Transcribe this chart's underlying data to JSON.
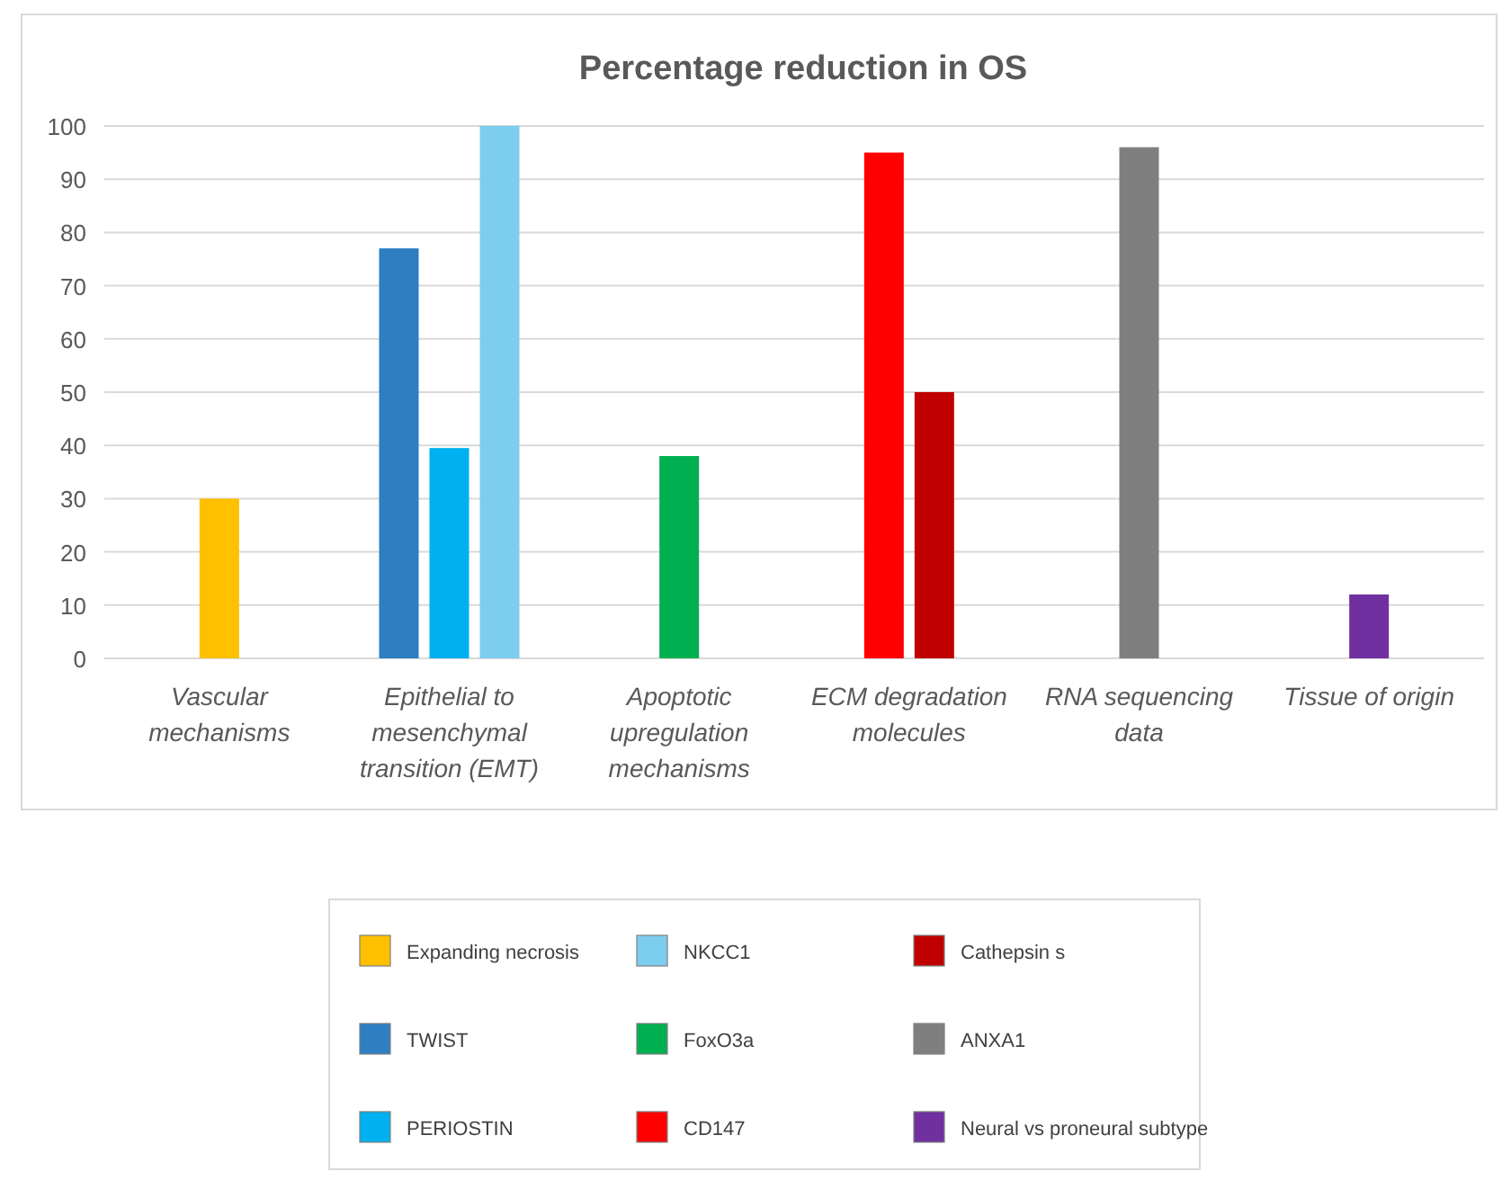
{
  "chart_data": {
    "type": "bar",
    "title": "Percentage reduction in OS",
    "categories": [
      "Vascular mechanisms",
      "Epithelial to mesenchymal transition (EMT)",
      "Apoptotic upregulation mechanisms",
      "ECM degradation molecules",
      "RNA sequencing data",
      "Tissue of origin"
    ],
    "series": [
      {
        "name": "Expanding necrosis",
        "color": "#ffc000",
        "values": [
          30,
          null,
          null,
          null,
          null,
          null
        ]
      },
      {
        "name": "TWIST",
        "color": "#2e7ec4",
        "values": [
          null,
          77,
          null,
          null,
          null,
          null
        ]
      },
      {
        "name": "PERIOSTIN",
        "color": "#00b0f0",
        "values": [
          null,
          39.5,
          null,
          null,
          null,
          null
        ]
      },
      {
        "name": "NKCC1",
        "color": "#7dcdef",
        "values": [
          null,
          100,
          null,
          null,
          null,
          null
        ]
      },
      {
        "name": "FoxO3a",
        "color": "#00b050",
        "values": [
          null,
          null,
          38,
          null,
          null,
          null
        ]
      },
      {
        "name": "CD147",
        "color": "#ff0000",
        "values": [
          null,
          null,
          null,
          95,
          null,
          null
        ]
      },
      {
        "name": "Cathepsin s",
        "color": "#c00000",
        "values": [
          null,
          null,
          null,
          50,
          null,
          null
        ]
      },
      {
        "name": "ANXA1",
        "color": "#7f7f7f",
        "values": [
          null,
          null,
          null,
          null,
          96,
          null
        ]
      },
      {
        "name": "Neural vs proneural subtype",
        "color": "#7030a0",
        "values": [
          null,
          null,
          null,
          null,
          null,
          12
        ]
      }
    ],
    "ylim": [
      0,
      100
    ],
    "yticks": [
      0,
      10,
      20,
      30,
      40,
      50,
      60,
      70,
      80,
      90,
      100
    ],
    "grid": "y",
    "legend": "bottom"
  }
}
